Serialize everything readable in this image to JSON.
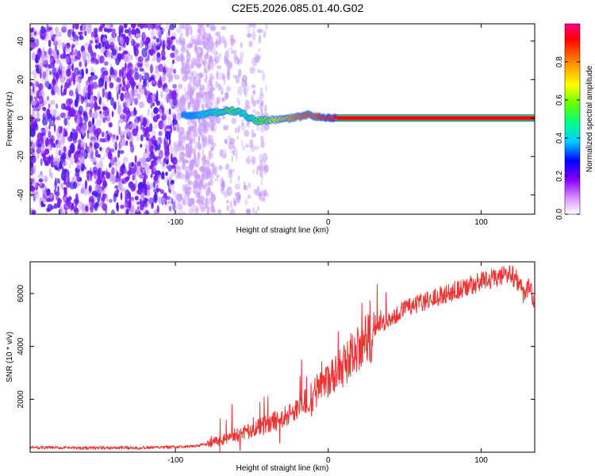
{
  "title": "C2E5.2026.085.01.40.G02",
  "chart_data": [
    {
      "type": "heatmap",
      "name": "spectrogram",
      "xlabel": "Height of straight line (km)",
      "ylabel": "Frequency (Hz)",
      "xlim": [
        -195,
        135
      ],
      "ylim": [
        -50,
        49
      ],
      "xticks": [
        -100,
        0,
        100
      ],
      "xtick_labels": [
        "-100",
        "0",
        "100"
      ],
      "yticks": [
        -40,
        -20,
        0,
        20,
        40
      ],
      "ytick_labels": [
        "-40",
        "-20",
        "0",
        "20",
        "40"
      ],
      "track": {
        "x": [
          -95,
          -88,
          -82,
          -76,
          -70,
          -64,
          -58,
          -52,
          -46,
          -40,
          -34,
          -28,
          -22,
          -16,
          -12,
          -8,
          -4,
          0,
          10,
          20,
          40,
          60,
          80,
          100,
          120,
          135
        ],
        "y": [
          1.5,
          1.2,
          1.8,
          2.8,
          3.2,
          3.8,
          3.0,
          0.5,
          -1.5,
          -1.2,
          -0.8,
          -0.5,
          0.3,
          1.0,
          2.0,
          0.8,
          0.3,
          0.2,
          0.1,
          0.05,
          0.0,
          0.0,
          0.0,
          0.0,
          0.0,
          0.0
        ],
        "amplitude": [
          0.35,
          0.35,
          0.4,
          0.45,
          0.5,
          0.55,
          0.5,
          0.45,
          0.55,
          0.6,
          0.7,
          0.75,
          0.8,
          0.85,
          0.85,
          0.85,
          0.9,
          0.92,
          0.95,
          0.95,
          0.95,
          0.95,
          0.95,
          0.95,
          0.95,
          0.95
        ]
      },
      "noise_region_x": [
        -195,
        -75
      ],
      "colorbar": {
        "label": "Normalized spectral amplitude",
        "range": [
          0.0,
          1.0
        ],
        "ticks": [
          0.0,
          0.2,
          0.4,
          0.6,
          0.8
        ],
        "tick_labels": [
          "0.0",
          "0.2",
          "0.4",
          "0.6",
          "0.8"
        ]
      }
    },
    {
      "type": "line",
      "name": "snr",
      "xlabel": "Height of straight line (km)",
      "ylabel": "SNR (10 * v/v)",
      "xlim": [
        -195,
        135
      ],
      "ylim": [
        0,
        7200
      ],
      "xticks": [
        -100,
        0,
        100
      ],
      "xtick_labels": [
        "-100",
        "0",
        "100"
      ],
      "yticks": [
        2000,
        4000,
        6000
      ],
      "ytick_labels": [
        "2000",
        "4000",
        "6000"
      ],
      "color": "#ee3333",
      "series": [
        {
          "name": "SNR",
          "x": [
            -195,
            -180,
            -160,
            -140,
            -120,
            -100,
            -90,
            -80,
            -70,
            -60,
            -50,
            -40,
            -30,
            -20,
            -10,
            0,
            10,
            20,
            30,
            40,
            50,
            60,
            70,
            80,
            90,
            100,
            110,
            115,
            120,
            125,
            128,
            131,
            133,
            135
          ],
          "y": [
            180,
            170,
            160,
            165,
            170,
            190,
            210,
            300,
            450,
            650,
            850,
            1050,
            1300,
            1650,
            2150,
            2700,
            3300,
            3950,
            4550,
            5050,
            5400,
            5650,
            5850,
            6050,
            6250,
            6450,
            6600,
            6650,
            6700,
            6400,
            5900,
            6200,
            6000,
            5500
          ]
        }
      ]
    }
  ]
}
